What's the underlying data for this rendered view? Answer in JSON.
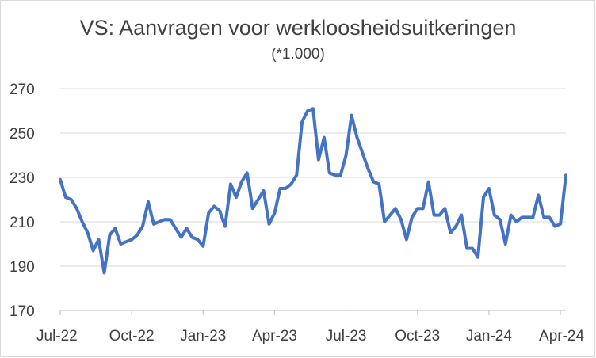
{
  "chart_data": {
    "type": "line",
    "title": "VS: Aanvragen voor werkloosheidsuitkeringen",
    "subtitle": "(*1.000)",
    "xlabel": "",
    "ylabel": "",
    "ylim": [
      170,
      270
    ],
    "yticks": [
      "270",
      "250",
      "230",
      "210",
      "190",
      "170"
    ],
    "ytick_values": [
      270,
      250,
      230,
      210,
      190,
      170
    ],
    "xticks": [
      "Jul-22",
      "Oct-22",
      "Jan-23",
      "Apr-23",
      "Jul-23",
      "Oct-23",
      "Jan-24",
      "Apr-24"
    ],
    "xtick_index": [
      0,
      13,
      26,
      39,
      52,
      65,
      78,
      91
    ],
    "grid": true,
    "legend": "none",
    "line_color": "#4472c4",
    "series": [
      {
        "values": [
          229,
          221,
          220,
          216,
          210,
          205,
          197,
          202,
          187,
          204,
          207,
          200,
          201,
          202,
          204,
          208,
          219,
          209,
          210,
          211,
          211,
          207,
          203,
          207,
          203,
          202,
          199,
          214,
          217,
          215,
          208,
          227,
          221,
          228,
          232,
          216,
          220,
          224,
          209,
          214,
          225,
          225,
          227,
          231,
          255,
          260,
          261,
          238,
          248,
          232,
          231,
          231,
          240,
          258,
          248,
          241,
          234,
          228,
          227,
          210,
          213,
          216,
          211,
          202,
          212,
          216,
          216,
          228,
          213,
          213,
          216,
          205,
          208,
          213,
          198,
          198,
          194,
          221,
          225,
          213,
          211,
          200,
          213,
          210,
          212,
          212,
          212,
          222,
          212,
          212,
          208,
          209,
          231
        ]
      }
    ]
  }
}
